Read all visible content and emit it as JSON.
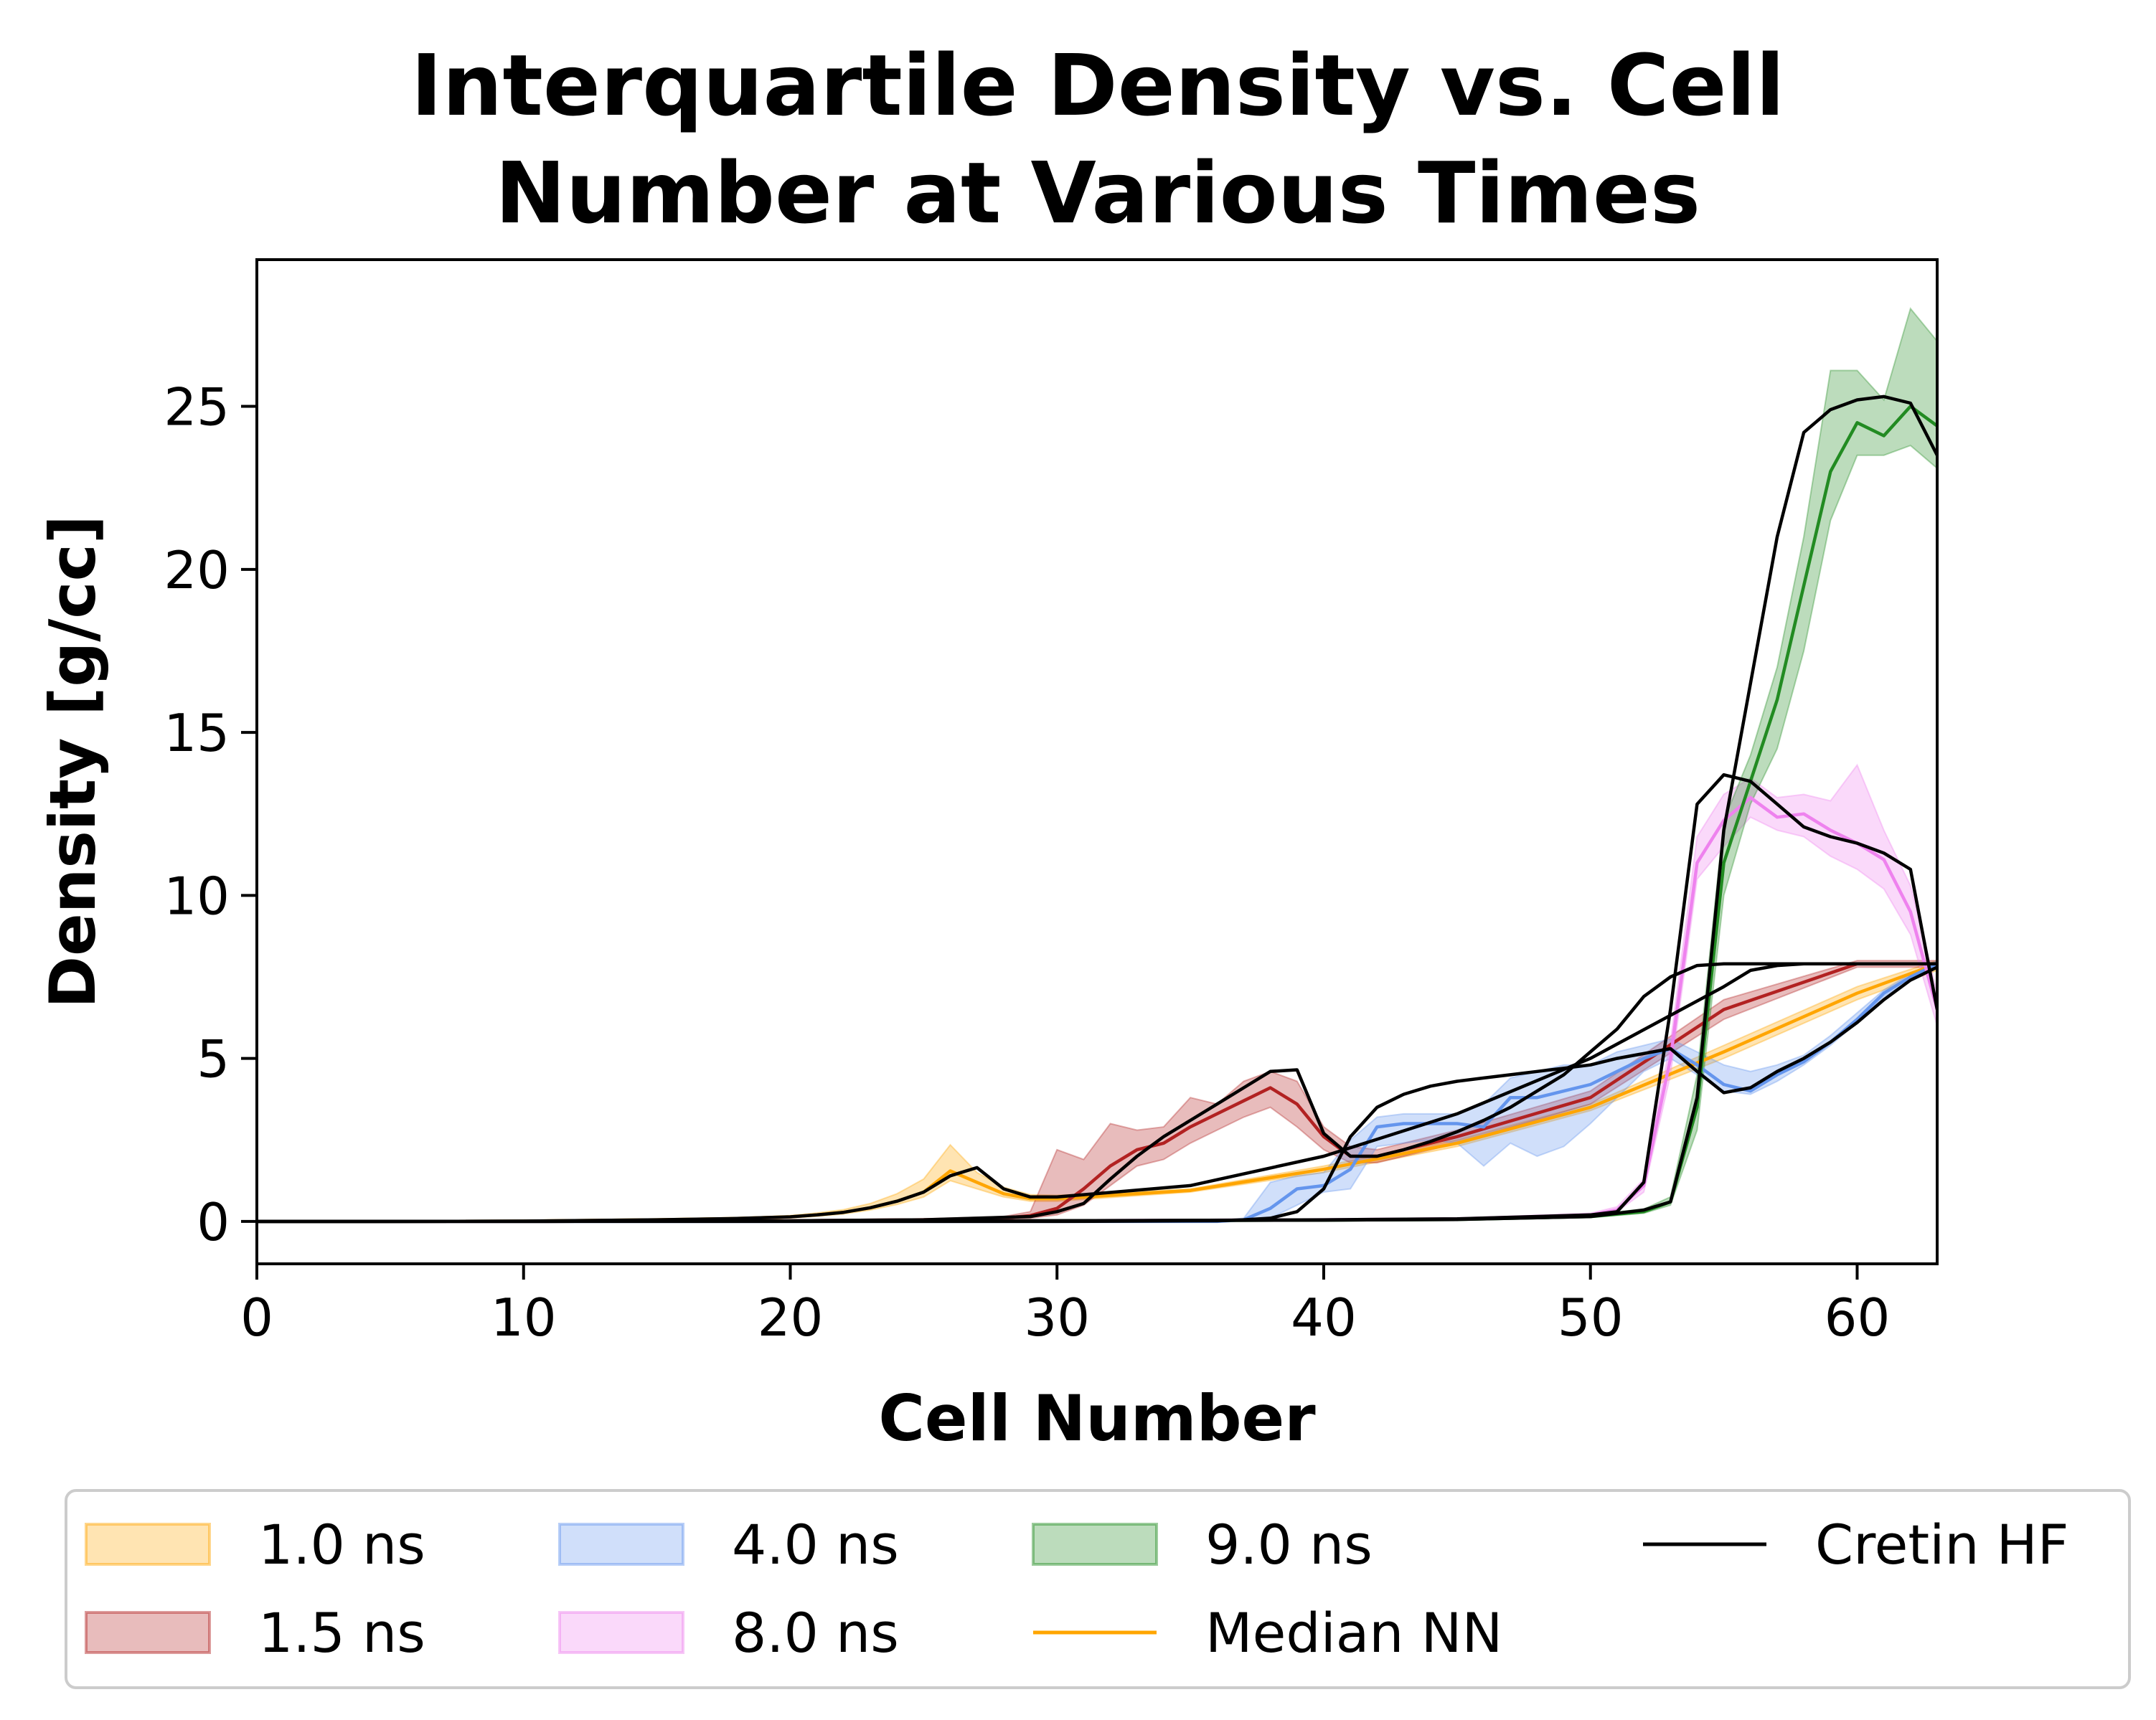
{
  "chart_data": {
    "type": "line",
    "title_lines": [
      "Interquartile Density vs. Cell",
      "Number at Various Times"
    ],
    "xlabel": "Cell Number",
    "ylabel": "Density [g/cc]",
    "xlim": [
      0,
      63
    ],
    "ylim": [
      -1.3,
      29.5
    ],
    "x_ticks": [
      0,
      10,
      20,
      30,
      40,
      50,
      60
    ],
    "y_ticks": [
      0,
      5,
      10,
      15,
      20,
      25
    ],
    "grid": false,
    "legend_position": "bottom",
    "legend": [
      {
        "label": "1.0 ns",
        "kind": "band",
        "color": "#ffa500"
      },
      {
        "label": "1.5 ns",
        "kind": "band",
        "color": "#b22222"
      },
      {
        "label": "4.0 ns",
        "kind": "band",
        "color": "#6495ed"
      },
      {
        "label": "8.0 ns",
        "kind": "band",
        "color": "#ee82ee"
      },
      {
        "label": "9.0 ns",
        "kind": "band",
        "color": "#228b22"
      },
      {
        "label": "Median NN",
        "kind": "line",
        "color": "#ffa500"
      },
      {
        "label": "Cretin HF",
        "kind": "line",
        "color": "#000000"
      }
    ],
    "series": [
      {
        "name": "1.0 ns",
        "color": "#ffa500",
        "x": [
          0,
          5,
          10,
          15,
          18,
          20,
          21,
          22,
          23,
          24,
          25,
          26,
          27,
          28,
          29,
          30,
          35,
          40,
          45,
          50,
          55,
          60,
          63
        ],
        "median": [
          0,
          0,
          0.01,
          0.05,
          0.09,
          0.14,
          0.2,
          0.28,
          0.42,
          0.62,
          0.9,
          1.55,
          1.2,
          0.85,
          0.7,
          0.7,
          0.95,
          1.6,
          2.4,
          3.5,
          5.2,
          7.0,
          7.9
        ],
        "q1": [
          0,
          0,
          0.01,
          0.04,
          0.07,
          0.11,
          0.16,
          0.23,
          0.35,
          0.52,
          0.75,
          1.25,
          1.0,
          0.75,
          0.62,
          0.62,
          0.9,
          1.5,
          2.3,
          3.4,
          5.0,
          6.8,
          7.7
        ],
        "q3": [
          0,
          0,
          0.02,
          0.06,
          0.11,
          0.18,
          0.26,
          0.36,
          0.55,
          0.85,
          1.3,
          2.35,
          1.5,
          1.05,
          0.82,
          0.8,
          1.0,
          1.7,
          2.5,
          3.6,
          5.4,
          7.2,
          8.0
        ]
      },
      {
        "name": "1.5 ns",
        "color": "#b22222",
        "x": [
          0,
          10,
          20,
          25,
          28,
          29,
          30,
          31,
          32,
          33,
          34,
          35,
          36,
          37,
          38,
          39,
          40,
          41,
          42,
          45,
          50,
          55,
          60,
          63
        ],
        "median": [
          0,
          0,
          0.02,
          0.05,
          0.1,
          0.18,
          0.4,
          1.0,
          1.7,
          2.2,
          2.4,
          2.9,
          3.3,
          3.7,
          4.1,
          3.6,
          2.6,
          2.0,
          2.0,
          2.6,
          3.8,
          6.5,
          7.9,
          7.9
        ],
        "q1": [
          0,
          0,
          0.01,
          0.03,
          0.06,
          0.1,
          0.2,
          0.5,
          1.1,
          1.7,
          1.9,
          2.4,
          2.8,
          3.2,
          3.5,
          2.9,
          2.2,
          1.8,
          1.8,
          2.4,
          3.6,
          6.2,
          7.8,
          7.8
        ],
        "q3": [
          0,
          0,
          0.04,
          0.08,
          0.15,
          0.3,
          2.2,
          1.9,
          3.0,
          2.8,
          2.9,
          3.8,
          3.6,
          4.3,
          4.6,
          4.3,
          2.9,
          2.3,
          2.2,
          2.8,
          4.0,
          6.8,
          8.0,
          8.0
        ]
      },
      {
        "name": "4.0 ns",
        "color": "#6495ed",
        "x": [
          0,
          20,
          30,
          36,
          37,
          38,
          39,
          40,
          41,
          42,
          43,
          44,
          45,
          46,
          47,
          48,
          49,
          50,
          51,
          52,
          53,
          54,
          55,
          56,
          57,
          58,
          59,
          60,
          61,
          62,
          63
        ],
        "median": [
          0,
          0,
          0,
          0,
          0.05,
          0.4,
          1.0,
          1.1,
          1.6,
          2.9,
          3.0,
          3.0,
          3.0,
          2.9,
          3.8,
          3.8,
          4.0,
          4.2,
          4.6,
          5.0,
          5.3,
          4.8,
          4.2,
          4.0,
          4.5,
          4.9,
          5.5,
          6.2,
          7.0,
          7.5,
          7.9
        ],
        "q1": [
          0,
          0,
          0,
          0,
          0.02,
          0.1,
          0.5,
          0.9,
          1.0,
          2.3,
          2.4,
          2.5,
          2.4,
          1.7,
          2.4,
          2.0,
          2.3,
          3.0,
          3.8,
          4.6,
          5.0,
          4.5,
          4.0,
          3.9,
          4.3,
          4.8,
          5.4,
          6.1,
          6.9,
          7.4,
          7.8
        ],
        "q3": [
          0,
          0,
          0,
          0,
          0.1,
          1.2,
          1.4,
          1.5,
          2.5,
          3.2,
          3.3,
          3.3,
          3.3,
          3.6,
          4.4,
          4.6,
          4.8,
          4.8,
          5.2,
          5.4,
          5.6,
          5.2,
          4.8,
          4.6,
          4.8,
          5.1,
          5.7,
          6.4,
          7.1,
          7.6,
          8.0
        ]
      },
      {
        "name": "8.0 ns",
        "color": "#ee82ee",
        "x": [
          0,
          20,
          30,
          40,
          45,
          50,
          51,
          52,
          53,
          54,
          55,
          56,
          57,
          58,
          59,
          60,
          61,
          62,
          63
        ],
        "median": [
          0,
          0.01,
          0.02,
          0.05,
          0.08,
          0.2,
          0.35,
          1.1,
          5.0,
          11.0,
          12.3,
          13.0,
          12.4,
          12.5,
          12.0,
          11.6,
          11.1,
          9.5,
          6.5
        ],
        "q1": [
          0,
          0.01,
          0.02,
          0.04,
          0.07,
          0.15,
          0.3,
          0.9,
          4.5,
          10.5,
          11.5,
          12.4,
          12.0,
          11.8,
          11.2,
          10.8,
          10.2,
          8.8,
          6.0
        ],
        "q3": [
          0,
          0.02,
          0.03,
          0.06,
          0.1,
          0.25,
          0.45,
          1.3,
          5.5,
          11.8,
          13.1,
          13.6,
          13.0,
          13.1,
          12.9,
          14.0,
          12.0,
          10.3,
          7.0
        ]
      },
      {
        "name": "9.0 ns",
        "color": "#228b22",
        "x": [
          0,
          20,
          30,
          40,
          45,
          50,
          52,
          53,
          54,
          55,
          56,
          57,
          58,
          59,
          60,
          61,
          62,
          63
        ],
        "median": [
          0,
          0.01,
          0.02,
          0.04,
          0.06,
          0.15,
          0.3,
          0.6,
          3.5,
          11.0,
          13.5,
          16.0,
          19.5,
          23.0,
          24.5,
          24.1,
          25.0,
          24.4
        ],
        "q1": [
          0,
          0.01,
          0.02,
          0.03,
          0.05,
          0.12,
          0.25,
          0.5,
          2.8,
          10.0,
          12.8,
          14.5,
          17.5,
          21.5,
          23.5,
          23.5,
          23.8,
          23.1
        ],
        "q3": [
          0,
          0.02,
          0.03,
          0.05,
          0.08,
          0.2,
          0.38,
          0.75,
          4.5,
          12.3,
          14.3,
          17.0,
          21.0,
          26.1,
          26.1,
          25.2,
          28.0,
          27.0
        ]
      }
    ],
    "reference_lines": [
      {
        "name": "Cretin HF 1.0 ns",
        "x": [
          0,
          5,
          10,
          15,
          18,
          20,
          21,
          22,
          23,
          24,
          25,
          26,
          27,
          28,
          29,
          30,
          35,
          40,
          45,
          50,
          55,
          56,
          57,
          58,
          59,
          60,
          61,
          62,
          63
        ],
        "y": [
          0,
          0,
          0.01,
          0.05,
          0.09,
          0.14,
          0.2,
          0.28,
          0.42,
          0.62,
          0.9,
          1.4,
          1.65,
          1.0,
          0.75,
          0.75,
          1.1,
          2.0,
          3.3,
          5.0,
          7.2,
          7.7,
          7.85,
          7.9,
          7.9,
          7.9,
          7.9,
          7.9,
          7.9
        ]
      },
      {
        "name": "Cretin HF 1.5 ns",
        "x": [
          0,
          10,
          20,
          25,
          29,
          30,
          31,
          32,
          33,
          34,
          35,
          36,
          37,
          38,
          39,
          40,
          41,
          42,
          43,
          44,
          45,
          46,
          47,
          48,
          49,
          50,
          51,
          52,
          53,
          54,
          55,
          56,
          57,
          58,
          59,
          60,
          61,
          62,
          63
        ],
        "y": [
          0,
          0,
          0.02,
          0.05,
          0.15,
          0.3,
          0.55,
          1.3,
          2.0,
          2.6,
          3.1,
          3.6,
          4.1,
          4.6,
          4.65,
          2.7,
          2.0,
          2.0,
          2.2,
          2.45,
          2.75,
          3.1,
          3.5,
          4.0,
          4.5,
          5.2,
          5.9,
          6.9,
          7.5,
          7.85,
          7.9,
          7.9,
          7.9,
          7.9,
          7.9,
          7.9,
          7.9,
          7.9,
          7.9
        ]
      },
      {
        "name": "Cretin HF 4.0 ns",
        "x": [
          0,
          20,
          30,
          36,
          37,
          38,
          39,
          40,
          41,
          42,
          43,
          44,
          45,
          46,
          47,
          48,
          49,
          50,
          51,
          52,
          53,
          54,
          55,
          56,
          57,
          58,
          59,
          60,
          61,
          62,
          63
        ],
        "y": [
          0,
          0,
          0,
          0.02,
          0.05,
          0.1,
          0.3,
          1.0,
          2.6,
          3.5,
          3.9,
          4.15,
          4.3,
          4.4,
          4.5,
          4.6,
          4.7,
          4.8,
          5.0,
          5.15,
          5.3,
          4.6,
          3.95,
          4.1,
          4.6,
          5.0,
          5.5,
          6.1,
          6.8,
          7.4,
          7.8
        ]
      },
      {
        "name": "Cretin HF 8.0 ns",
        "x": [
          0,
          20,
          30,
          40,
          45,
          50,
          51,
          52,
          53,
          54,
          55,
          56,
          57,
          58,
          59,
          60,
          61,
          62,
          63
        ],
        "y": [
          0,
          0.01,
          0.02,
          0.05,
          0.08,
          0.2,
          0.3,
          1.2,
          6.5,
          12.8,
          13.7,
          13.5,
          12.8,
          12.1,
          11.8,
          11.6,
          11.3,
          10.8,
          6.5
        ]
      },
      {
        "name": "Cretin HF 9.0 ns",
        "x": [
          0,
          20,
          30,
          40,
          45,
          50,
          51,
          52,
          53,
          54,
          55,
          56,
          57,
          58,
          59,
          60,
          61,
          62,
          63
        ],
        "y": [
          0,
          0.01,
          0.02,
          0.04,
          0.06,
          0.15,
          0.25,
          0.35,
          0.6,
          3.8,
          12.0,
          16.5,
          21.0,
          24.2,
          24.9,
          25.2,
          25.3,
          25.1,
          23.5
        ]
      }
    ]
  }
}
